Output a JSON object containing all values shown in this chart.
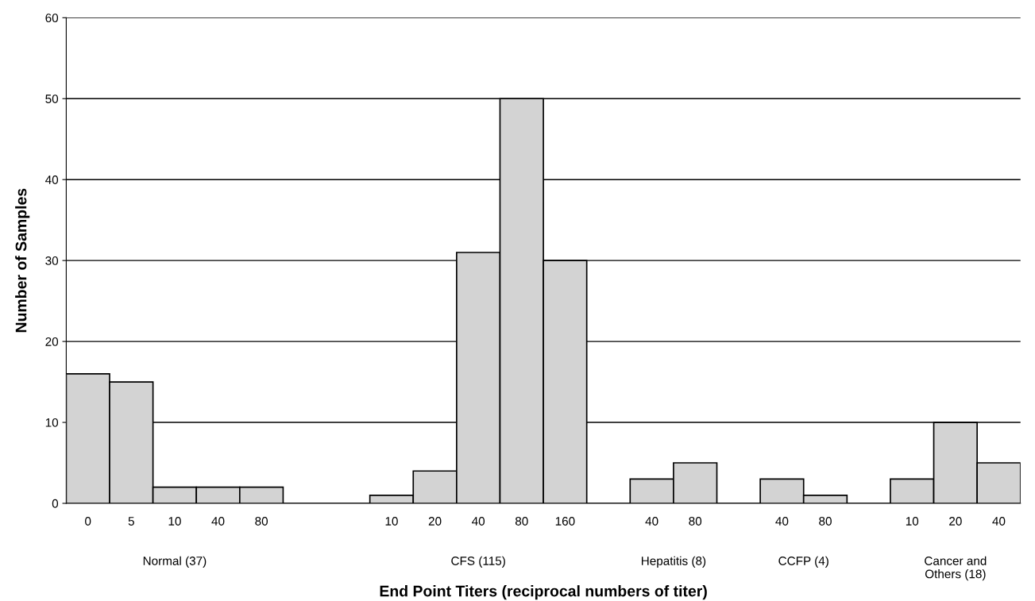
{
  "chart_data": {
    "type": "bar",
    "xlabel": "End Point Titers (reciprocal numbers of titer)",
    "ylabel": "Number of Samples",
    "categories": [
      "0",
      "5",
      "10",
      "40",
      "80",
      null,
      null,
      "10",
      "20",
      "40",
      "80",
      "160",
      null,
      "40",
      "80",
      null,
      "40",
      "80",
      null,
      "10",
      "20",
      "40"
    ],
    "values": [
      16,
      15,
      2,
      2,
      2,
      null,
      null,
      1,
      4,
      31,
      50,
      30,
      null,
      3,
      5,
      null,
      3,
      1,
      null,
      3,
      10,
      5
    ],
    "color": "#d3d3d3",
    "annotations": [
      "Normal (37)",
      "CFS (115)",
      "Hepatitis (8)",
      "CCFP (4)",
      "Cancer and\nOthers (18)"
    ],
    "ylim": [
      0,
      60
    ],
    "yticks": [
      0,
      10,
      20,
      30,
      40,
      50,
      60
    ],
    "grid": "y"
  }
}
